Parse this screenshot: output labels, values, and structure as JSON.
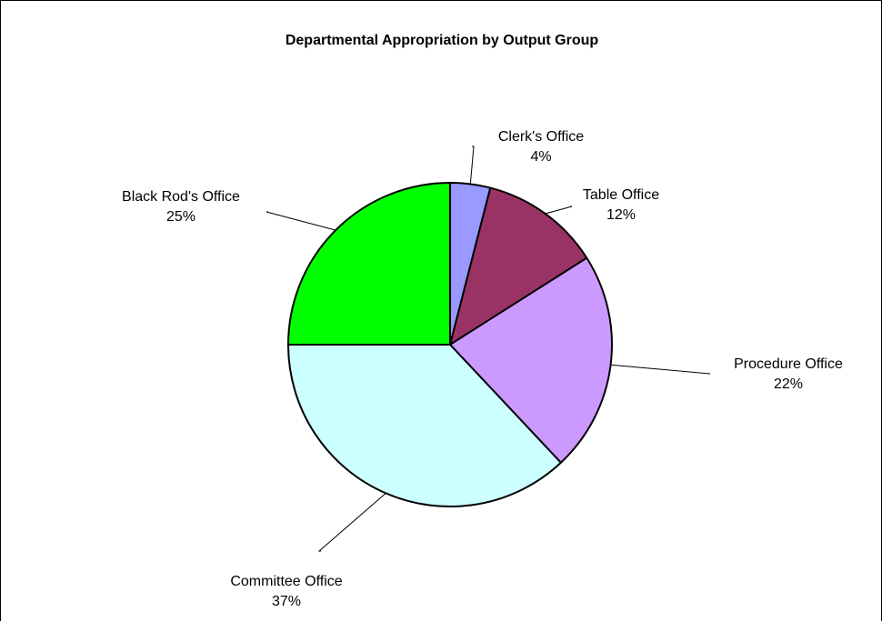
{
  "chart_data": {
    "type": "pie",
    "title": "Departmental Appropriation by Output Group",
    "slices": [
      {
        "label": "Clerk's Office",
        "value": 4,
        "value_label": "4%",
        "color": "#9999ff"
      },
      {
        "label": "Table Office",
        "value": 12,
        "value_label": "12%",
        "color": "#993366"
      },
      {
        "label": "Procedure Office",
        "value": 22,
        "value_label": "22%",
        "color": "#cc99ff"
      },
      {
        "label": "Committee Office",
        "value": 37,
        "value_label": "37%",
        "color": "#ccffff"
      },
      {
        "label": "Black Rod's Office",
        "value": 25,
        "value_label": "25%",
        "color": "#00ff00"
      }
    ],
    "start_angle": "12 o'clock",
    "direction": "clockwise",
    "legend": "none",
    "data_labels": "outside with leader lines"
  }
}
